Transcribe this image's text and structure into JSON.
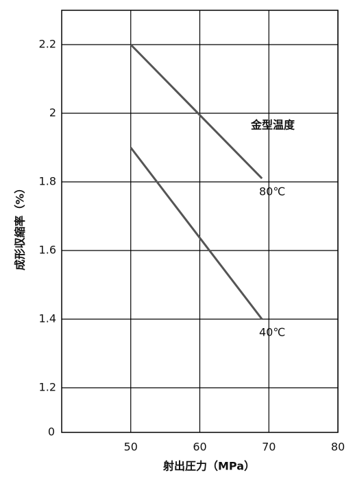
{
  "chart_data": {
    "type": "line",
    "x_label": "射出圧力（MPa）",
    "y_label": "成形収縮率（%）",
    "annotation": "金型温度",
    "x": [
      50,
      69
    ],
    "series": [
      {
        "name": "80℃",
        "color": "#555555",
        "values": [
          2.2,
          1.81
        ]
      },
      {
        "name": "40℃",
        "color": "#555555",
        "values": [
          1.9,
          1.4
        ]
      }
    ],
    "xlim": [
      40,
      80
    ],
    "xticks": [
      50,
      60,
      70,
      80
    ],
    "ylim": [
      1.07,
      2.3
    ],
    "yticks": [
      1.2,
      1.4,
      1.6,
      1.8,
      2.0,
      2.2
    ],
    "y_origin_label": "0",
    "grid": true
  }
}
